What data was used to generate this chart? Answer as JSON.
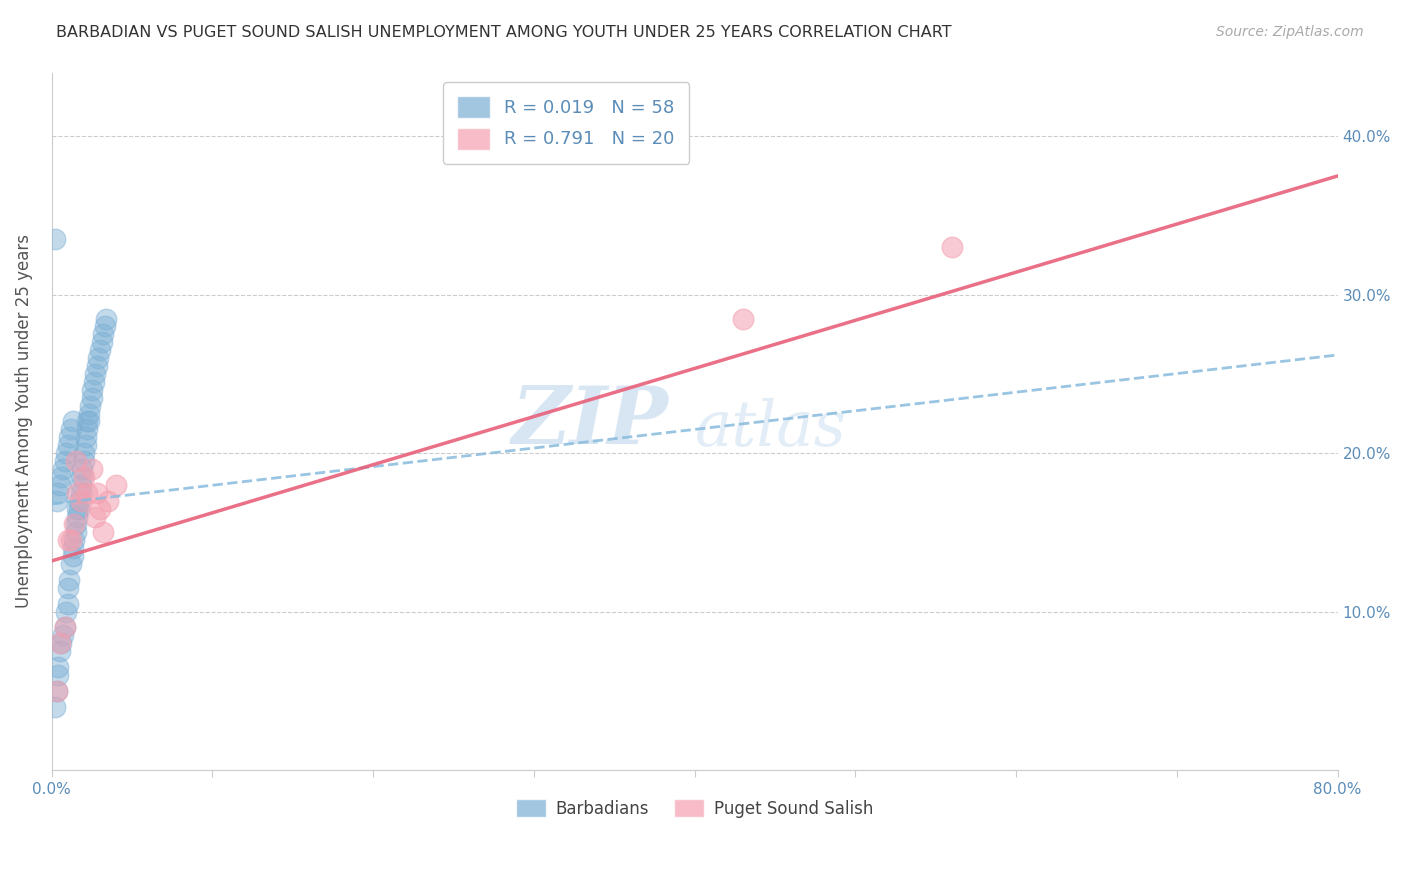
{
  "title": "BARBADIAN VS PUGET SOUND SALISH UNEMPLOYMENT AMONG YOUTH UNDER 25 YEARS CORRELATION CHART",
  "source": "Source: ZipAtlas.com",
  "ylabel": "Unemployment Among Youth under 25 years",
  "legend_label1": "Barbadians",
  "legend_label2": "Puget Sound Salish",
  "R1": 0.019,
  "N1": 58,
  "R2": 0.791,
  "N2": 20,
  "xlim": [
    0.0,
    0.8
  ],
  "ylim": [
    0.0,
    0.44
  ],
  "xticks": [
    0.0,
    0.1,
    0.2,
    0.3,
    0.4,
    0.5,
    0.6,
    0.7,
    0.8
  ],
  "yticks": [
    0.0,
    0.1,
    0.2,
    0.3,
    0.4
  ],
  "xticklabels": [
    "0.0%",
    "",
    "",
    "",
    "",
    "",
    "",
    "",
    "80.0%"
  ],
  "yticklabels_right": [
    "",
    "10.0%",
    "20.0%",
    "30.0%",
    "40.0%"
  ],
  "color_blue": "#7BAFD4",
  "color_pink": "#F4A0B0",
  "color_blue_line": "#88BBDD",
  "color_pink_line": "#E8607A",
  "color_text_blue": "#5B8DB8",
  "watermark_zip": "ZIP",
  "watermark_atlas": "atlas",
  "blue_x": [
    0.002,
    0.003,
    0.004,
    0.004,
    0.005,
    0.006,
    0.007,
    0.008,
    0.009,
    0.01,
    0.01,
    0.011,
    0.012,
    0.013,
    0.013,
    0.014,
    0.015,
    0.015,
    0.016,
    0.016,
    0.017,
    0.017,
    0.018,
    0.018,
    0.019,
    0.019,
    0.02,
    0.02,
    0.021,
    0.021,
    0.022,
    0.022,
    0.023,
    0.023,
    0.024,
    0.025,
    0.025,
    0.026,
    0.027,
    0.028,
    0.029,
    0.03,
    0.031,
    0.032,
    0.033,
    0.034,
    0.003,
    0.004,
    0.005,
    0.006,
    0.007,
    0.008,
    0.009,
    0.01,
    0.011,
    0.012,
    0.013,
    0.002
  ],
  "blue_y": [
    0.04,
    0.05,
    0.06,
    0.065,
    0.075,
    0.08,
    0.085,
    0.09,
    0.1,
    0.105,
    0.115,
    0.12,
    0.13,
    0.135,
    0.14,
    0.145,
    0.15,
    0.155,
    0.16,
    0.165,
    0.165,
    0.17,
    0.175,
    0.18,
    0.185,
    0.19,
    0.195,
    0.2,
    0.205,
    0.21,
    0.215,
    0.22,
    0.22,
    0.225,
    0.23,
    0.235,
    0.24,
    0.245,
    0.25,
    0.255,
    0.26,
    0.265,
    0.27,
    0.275,
    0.28,
    0.285,
    0.17,
    0.175,
    0.18,
    0.185,
    0.19,
    0.195,
    0.2,
    0.205,
    0.21,
    0.215,
    0.22,
    0.335
  ],
  "pink_x": [
    0.003,
    0.005,
    0.008,
    0.01,
    0.012,
    0.014,
    0.015,
    0.016,
    0.018,
    0.02,
    0.022,
    0.025,
    0.027,
    0.028,
    0.03,
    0.032,
    0.035,
    0.04,
    0.43,
    0.56
  ],
  "pink_y": [
    0.05,
    0.08,
    0.09,
    0.145,
    0.145,
    0.155,
    0.195,
    0.175,
    0.17,
    0.185,
    0.175,
    0.19,
    0.16,
    0.175,
    0.165,
    0.15,
    0.17,
    0.18,
    0.285,
    0.33
  ],
  "blue_line_x": [
    0.0,
    0.8
  ],
  "blue_line_y": [
    0.168,
    0.262
  ],
  "pink_line_x": [
    0.0,
    0.8
  ],
  "pink_line_y": [
    0.132,
    0.375
  ]
}
